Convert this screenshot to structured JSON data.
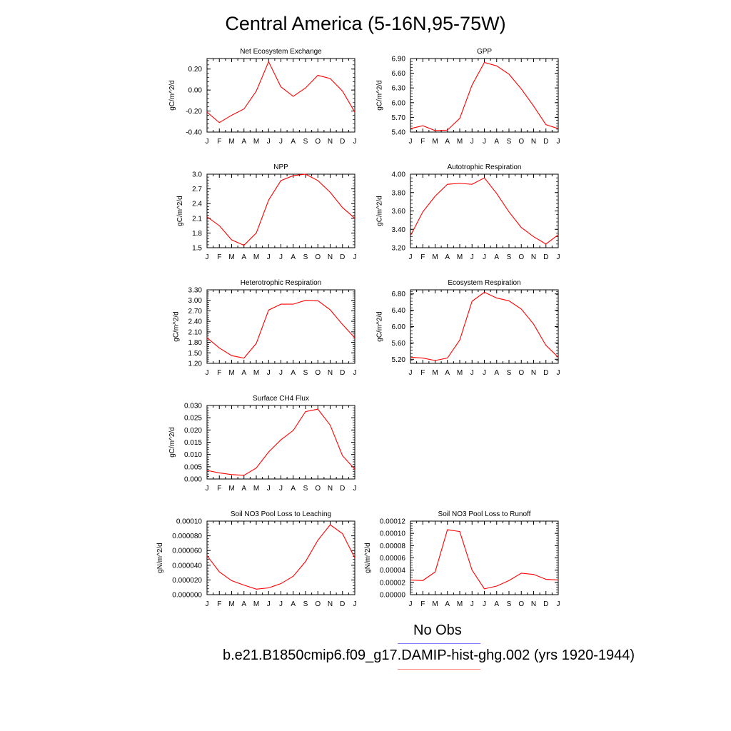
{
  "page": {
    "title": "Central America (5-16N,95-75W)",
    "legend": [
      {
        "label": "No Obs",
        "color": "#8080ff"
      },
      {
        "label": "b.e21.B1850cmip6.f09_g17.DAMIP-hist-ghg.002 (yrs 1920-1944)",
        "color": "#ff8080"
      }
    ]
  },
  "chart_data": [
    {
      "type": "line",
      "title": "Net Ecosystem Exchange",
      "ylabel": "gC/m^2/d",
      "categories": [
        "J",
        "F",
        "M",
        "A",
        "M",
        "J",
        "J",
        "A",
        "S",
        "O",
        "N",
        "D",
        "J"
      ],
      "ylim": [
        -0.4,
        0.3
      ],
      "yticks": [
        "0.20",
        "0.00",
        "-0.20",
        "-0.40"
      ],
      "ytick_values": [
        0.2,
        0.0,
        -0.2,
        -0.4
      ],
      "series": [
        {
          "color": "#ff0000",
          "values": [
            -0.21,
            -0.31,
            -0.24,
            -0.18,
            -0.01,
            0.27,
            0.03,
            -0.06,
            0.02,
            0.14,
            0.11,
            -0.01,
            -0.21
          ]
        }
      ]
    },
    {
      "type": "line",
      "title": "GPP",
      "ylabel": "gC/m^2/d",
      "categories": [
        "J",
        "F",
        "M",
        "A",
        "M",
        "J",
        "J",
        "A",
        "S",
        "O",
        "N",
        "D",
        "J"
      ],
      "ylim": [
        5.4,
        6.9
      ],
      "yticks": [
        "6.90",
        "6.60",
        "6.30",
        "6.00",
        "5.70",
        "5.40"
      ],
      "ytick_values": [
        6.9,
        6.6,
        6.3,
        6.0,
        5.7,
        5.4
      ],
      "series": [
        {
          "color": "#ff0000",
          "values": [
            5.47,
            5.53,
            5.43,
            5.44,
            5.68,
            6.36,
            6.82,
            6.75,
            6.58,
            6.28,
            5.93,
            5.55,
            5.47
          ]
        }
      ]
    },
    {
      "type": "line",
      "title": "NPP",
      "ylabel": "gC/m^2/d",
      "categories": [
        "J",
        "F",
        "M",
        "A",
        "M",
        "J",
        "J",
        "A",
        "S",
        "O",
        "N",
        "D",
        "J"
      ],
      "ylim": [
        1.5,
        3.0
      ],
      "yticks": [
        "3.0",
        "2.7",
        "2.4",
        "2.1",
        "1.8",
        "1.5"
      ],
      "ytick_values": [
        3.0,
        2.7,
        2.4,
        2.1,
        1.8,
        1.5
      ],
      "series": [
        {
          "color": "#ff0000",
          "values": [
            2.13,
            1.95,
            1.66,
            1.55,
            1.8,
            2.47,
            2.87,
            2.97,
            3.0,
            2.87,
            2.63,
            2.32,
            2.1
          ]
        }
      ]
    },
    {
      "type": "line",
      "title": "Autotrophic Respiration",
      "ylabel": "gC/m^2/d",
      "categories": [
        "J",
        "F",
        "M",
        "A",
        "M",
        "J",
        "J",
        "A",
        "S",
        "O",
        "N",
        "D",
        "J"
      ],
      "ylim": [
        3.2,
        4.0
      ],
      "yticks": [
        "4.00",
        "3.80",
        "3.60",
        "3.40",
        "3.20"
      ],
      "ytick_values": [
        4.0,
        3.8,
        3.6,
        3.4,
        3.2
      ],
      "series": [
        {
          "color": "#ff0000",
          "values": [
            3.33,
            3.59,
            3.76,
            3.89,
            3.9,
            3.89,
            3.96,
            3.79,
            3.59,
            3.42,
            3.32,
            3.24,
            3.34
          ]
        }
      ]
    },
    {
      "type": "line",
      "title": "Heterotrophic Respiration",
      "ylabel": "gC/m^2/d",
      "categories": [
        "J",
        "F",
        "M",
        "A",
        "M",
        "J",
        "J",
        "A",
        "S",
        "O",
        "N",
        "D",
        "J"
      ],
      "ylim": [
        1.2,
        3.3
      ],
      "yticks": [
        "3.30",
        "3.00",
        "2.70",
        "2.40",
        "2.10",
        "1.80",
        "1.50",
        "1.20"
      ],
      "ytick_values": [
        3.3,
        3.0,
        2.7,
        2.4,
        2.1,
        1.8,
        1.5,
        1.2
      ],
      "series": [
        {
          "color": "#ff0000",
          "values": [
            1.93,
            1.64,
            1.42,
            1.35,
            1.77,
            2.72,
            2.89,
            2.89,
            3.0,
            2.99,
            2.73,
            2.31,
            1.93
          ]
        }
      ]
    },
    {
      "type": "line",
      "title": "Ecosystem Respiration",
      "ylabel": "gC/m^2/d",
      "categories": [
        "J",
        "F",
        "M",
        "A",
        "M",
        "J",
        "J",
        "A",
        "S",
        "O",
        "N",
        "D",
        "J"
      ],
      "ylim": [
        5.1,
        6.9
      ],
      "yticks": [
        "6.80",
        "6.40",
        "6.00",
        "5.60",
        "5.20"
      ],
      "ytick_values": [
        6.8,
        6.4,
        6.0,
        5.6,
        5.2
      ],
      "series": [
        {
          "color": "#ff0000",
          "values": [
            5.25,
            5.23,
            5.17,
            5.23,
            5.67,
            6.62,
            6.84,
            6.7,
            6.63,
            6.43,
            6.06,
            5.54,
            5.25
          ]
        }
      ]
    },
    {
      "type": "line",
      "title": "Surface CH4 Flux",
      "ylabel": "gC/m^2/d",
      "categories": [
        "J",
        "F",
        "M",
        "A",
        "M",
        "J",
        "J",
        "A",
        "S",
        "O",
        "N",
        "D",
        "J"
      ],
      "ylim": [
        0.0,
        0.03
      ],
      "yticks": [
        "0.030",
        "0.025",
        "0.020",
        "0.015",
        "0.010",
        "0.005",
        "0.000"
      ],
      "ytick_values": [
        0.03,
        0.025,
        0.02,
        0.015,
        0.01,
        0.005,
        0.0
      ],
      "series": [
        {
          "color": "#ff0000",
          "values": [
            0.0035,
            0.0025,
            0.0018,
            0.0015,
            0.0045,
            0.011,
            0.016,
            0.0198,
            0.0275,
            0.0285,
            0.022,
            0.0095,
            0.004
          ]
        }
      ]
    },
    null,
    {
      "type": "line",
      "title": "Soil NO3 Pool Loss to Leaching",
      "ylabel": "gN/m^2/d",
      "categories": [
        "J",
        "F",
        "M",
        "A",
        "M",
        "J",
        "J",
        "A",
        "S",
        "O",
        "N",
        "D",
        "J"
      ],
      "ylim": [
        0.0,
        0.0001
      ],
      "yticks": [
        "0.00010",
        "0.000080",
        "0.000060",
        "0.000040",
        "0.000020",
        "0.000000"
      ],
      "ytick_values": [
        0.0001,
        8e-05,
        6e-05,
        4e-05,
        2e-05,
        0.0
      ],
      "series": [
        {
          "color": "#ff0000",
          "values": [
            5.3e-05,
            3.1e-05,
            1.9e-05,
            1.3e-05,
            7.5e-06,
            9.2e-06,
            1.5e-05,
            2.5e-05,
            4.5e-05,
            7.4e-05,
            9.5e-05,
            8.3e-05,
            5e-05
          ]
        }
      ]
    },
    {
      "type": "line",
      "title": "Soil NO3 Pool Loss to Runoff",
      "ylabel": "gN/m^2/d",
      "categories": [
        "J",
        "F",
        "M",
        "A",
        "M",
        "J",
        "J",
        "A",
        "S",
        "O",
        "N",
        "D",
        "J"
      ],
      "ylim": [
        0.0,
        0.00012
      ],
      "yticks": [
        "0.00012",
        "0.00010",
        "0.00008",
        "0.00006",
        "0.00004",
        "0.00002",
        "0.00000"
      ],
      "ytick_values": [
        0.00012,
        0.0001,
        8e-05,
        6e-05,
        4e-05,
        2e-05,
        0.0
      ],
      "series": [
        {
          "color": "#ff0000",
          "values": [
            2.4e-05,
            2.3e-05,
            3.7e-05,
            0.000106,
            0.000103,
            4e-05,
            9.5e-06,
            1.4e-05,
            2.3e-05,
            3.5e-05,
            3.3e-05,
            2.5e-05,
            2.4e-05
          ]
        }
      ]
    }
  ]
}
